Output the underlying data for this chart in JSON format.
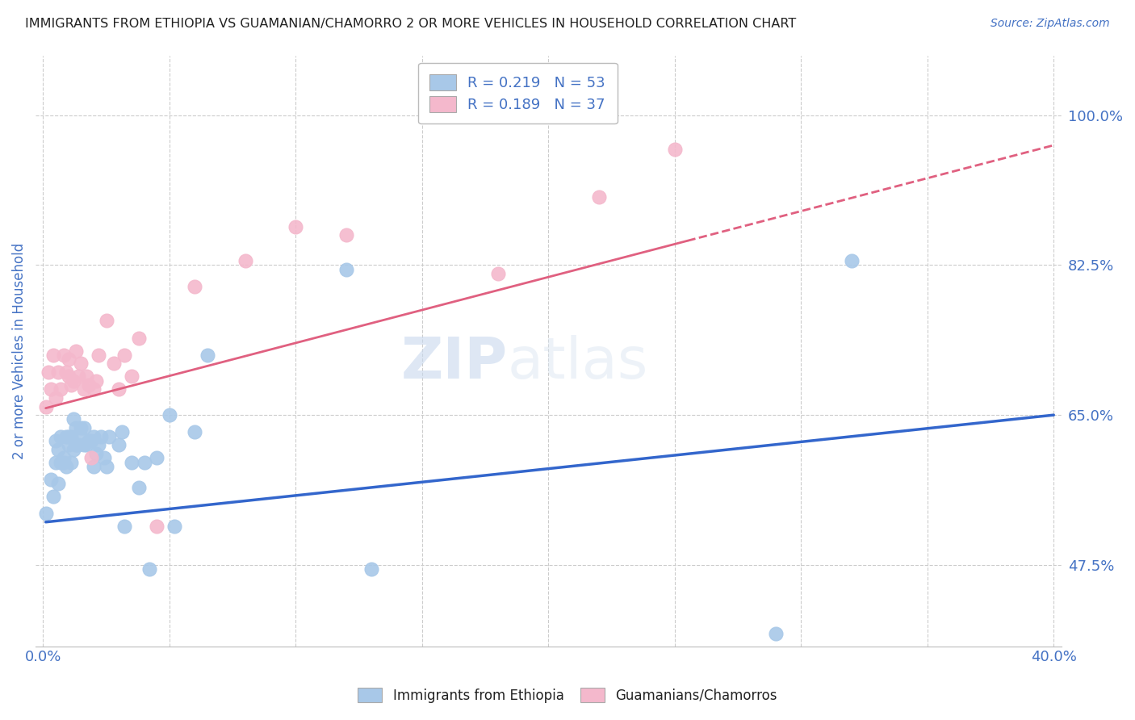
{
  "title": "IMMIGRANTS FROM ETHIOPIA VS GUAMANIAN/CHAMORRO 2 OR MORE VEHICLES IN HOUSEHOLD CORRELATION CHART",
  "source": "Source: ZipAtlas.com",
  "ylabel": "2 or more Vehicles in Household",
  "xlabel": "",
  "xlim": [
    -0.003,
    0.403
  ],
  "ylim": [
    0.38,
    1.07
  ],
  "yticks": [
    0.475,
    0.65,
    0.825,
    1.0
  ],
  "ytick_labels": [
    "47.5%",
    "65.0%",
    "82.5%",
    "100.0%"
  ],
  "xticks": [
    0.0,
    0.05,
    0.1,
    0.15,
    0.2,
    0.25,
    0.3,
    0.35,
    0.4
  ],
  "xtick_labels": [
    "0.0%",
    "",
    "",
    "",
    "",
    "",
    "",
    "",
    "40.0%"
  ],
  "blue_color": "#a8c8e8",
  "pink_color": "#f4b8cc",
  "blue_line_color": "#3366cc",
  "pink_line_color": "#e06080",
  "axis_color": "#4472c4",
  "watermark_zip": "ZIP",
  "watermark_atlas": "atlas",
  "legend_line1": "R = 0.219   N = 53",
  "legend_line2": "R = 0.189   N = 37",
  "ethiopia_x": [
    0.001,
    0.003,
    0.004,
    0.005,
    0.005,
    0.006,
    0.006,
    0.007,
    0.007,
    0.008,
    0.008,
    0.009,
    0.009,
    0.01,
    0.01,
    0.011,
    0.011,
    0.012,
    0.012,
    0.013,
    0.013,
    0.014,
    0.015,
    0.015,
    0.016,
    0.016,
    0.017,
    0.018,
    0.019,
    0.02,
    0.02,
    0.021,
    0.022,
    0.023,
    0.024,
    0.025,
    0.026,
    0.03,
    0.031,
    0.032,
    0.035,
    0.038,
    0.04,
    0.042,
    0.045,
    0.05,
    0.052,
    0.06,
    0.065,
    0.12,
    0.13,
    0.29,
    0.32
  ],
  "ethiopia_y": [
    0.535,
    0.575,
    0.555,
    0.62,
    0.595,
    0.57,
    0.61,
    0.595,
    0.625,
    0.6,
    0.595,
    0.59,
    0.625,
    0.615,
    0.625,
    0.595,
    0.625,
    0.61,
    0.645,
    0.615,
    0.635,
    0.615,
    0.625,
    0.635,
    0.615,
    0.635,
    0.615,
    0.62,
    0.62,
    0.59,
    0.625,
    0.605,
    0.615,
    0.625,
    0.6,
    0.59,
    0.625,
    0.615,
    0.63,
    0.52,
    0.595,
    0.565,
    0.595,
    0.47,
    0.6,
    0.65,
    0.52,
    0.63,
    0.72,
    0.82,
    0.47,
    0.395,
    0.83
  ],
  "guam_x": [
    0.001,
    0.002,
    0.003,
    0.004,
    0.005,
    0.006,
    0.007,
    0.008,
    0.009,
    0.01,
    0.01,
    0.011,
    0.012,
    0.013,
    0.014,
    0.015,
    0.016,
    0.017,
    0.018,
    0.019,
    0.02,
    0.021,
    0.022,
    0.025,
    0.028,
    0.03,
    0.032,
    0.035,
    0.038,
    0.045,
    0.06,
    0.08,
    0.1,
    0.12,
    0.18,
    0.22,
    0.25
  ],
  "guam_y": [
    0.66,
    0.7,
    0.68,
    0.72,
    0.67,
    0.7,
    0.68,
    0.72,
    0.7,
    0.695,
    0.715,
    0.685,
    0.69,
    0.725,
    0.695,
    0.71,
    0.68,
    0.695,
    0.685,
    0.6,
    0.68,
    0.69,
    0.72,
    0.76,
    0.71,
    0.68,
    0.72,
    0.695,
    0.74,
    0.52,
    0.8,
    0.83,
    0.87,
    0.86,
    0.815,
    0.905,
    0.96
  ],
  "blue_line_x0": 0.001,
  "blue_line_x1": 0.4,
  "blue_line_y0": 0.525,
  "blue_line_y1": 0.65,
  "pink_line_x0": 0.001,
  "pink_line_x1": 0.4,
  "pink_line_y0": 0.658,
  "pink_line_y1": 0.965
}
